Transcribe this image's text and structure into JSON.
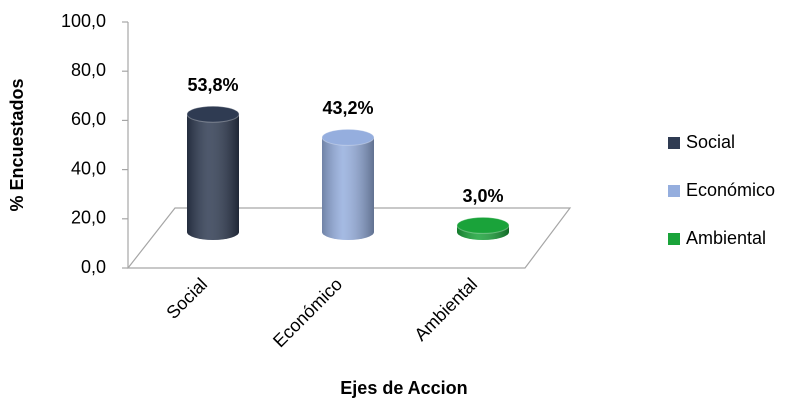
{
  "chart_data": {
    "type": "bar",
    "x_label": "Ejes de Accion",
    "y_label": "% Encuestados",
    "categories": [
      "Social",
      "Económico",
      "Ambiental"
    ],
    "values": [
      53.8,
      43.2,
      3.0
    ],
    "value_labels": [
      "53,8%",
      "43,2%",
      "3,0%"
    ],
    "colors": [
      "#2f3b52",
      "#95aede",
      "#1aa33a"
    ],
    "ylim": [
      0,
      100
    ],
    "yticks": [
      {
        "value": 0,
        "label": "0,0"
      },
      {
        "value": 20,
        "label": "20,0"
      },
      {
        "value": 40,
        "label": "40,0"
      },
      {
        "value": 60,
        "label": "60,0"
      },
      {
        "value": 80,
        "label": "80,0"
      },
      {
        "value": 100,
        "label": "100,0"
      }
    ],
    "legend": "right"
  }
}
